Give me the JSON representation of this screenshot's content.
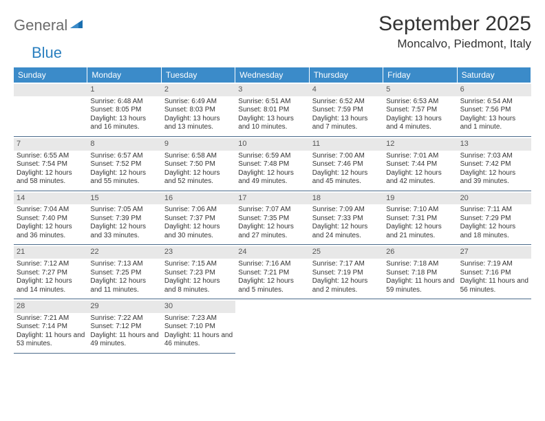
{
  "logo": {
    "part1": "General",
    "part2": "Blue"
  },
  "title": "September 2025",
  "location": "Moncalvo, Piedmont, Italy",
  "colors": {
    "header_bg": "#3b8bc9",
    "header_text": "#ffffff",
    "daynum_bg": "#e8e8e8",
    "rule": "#4a6a8a",
    "logo_gray": "#6b6b6b",
    "logo_blue": "#2a7fbf"
  },
  "weekdays": [
    "Sunday",
    "Monday",
    "Tuesday",
    "Wednesday",
    "Thursday",
    "Friday",
    "Saturday"
  ],
  "start_offset": 1,
  "days": [
    {
      "n": 1,
      "sr": "6:48 AM",
      "ss": "8:05 PM",
      "dl": "13 hours and 16 minutes."
    },
    {
      "n": 2,
      "sr": "6:49 AM",
      "ss": "8:03 PM",
      "dl": "13 hours and 13 minutes."
    },
    {
      "n": 3,
      "sr": "6:51 AM",
      "ss": "8:01 PM",
      "dl": "13 hours and 10 minutes."
    },
    {
      "n": 4,
      "sr": "6:52 AM",
      "ss": "7:59 PM",
      "dl": "13 hours and 7 minutes."
    },
    {
      "n": 5,
      "sr": "6:53 AM",
      "ss": "7:57 PM",
      "dl": "13 hours and 4 minutes."
    },
    {
      "n": 6,
      "sr": "6:54 AM",
      "ss": "7:56 PM",
      "dl": "13 hours and 1 minute."
    },
    {
      "n": 7,
      "sr": "6:55 AM",
      "ss": "7:54 PM",
      "dl": "12 hours and 58 minutes."
    },
    {
      "n": 8,
      "sr": "6:57 AM",
      "ss": "7:52 PM",
      "dl": "12 hours and 55 minutes."
    },
    {
      "n": 9,
      "sr": "6:58 AM",
      "ss": "7:50 PM",
      "dl": "12 hours and 52 minutes."
    },
    {
      "n": 10,
      "sr": "6:59 AM",
      "ss": "7:48 PM",
      "dl": "12 hours and 49 minutes."
    },
    {
      "n": 11,
      "sr": "7:00 AM",
      "ss": "7:46 PM",
      "dl": "12 hours and 45 minutes."
    },
    {
      "n": 12,
      "sr": "7:01 AM",
      "ss": "7:44 PM",
      "dl": "12 hours and 42 minutes."
    },
    {
      "n": 13,
      "sr": "7:03 AM",
      "ss": "7:42 PM",
      "dl": "12 hours and 39 minutes."
    },
    {
      "n": 14,
      "sr": "7:04 AM",
      "ss": "7:40 PM",
      "dl": "12 hours and 36 minutes."
    },
    {
      "n": 15,
      "sr": "7:05 AM",
      "ss": "7:39 PM",
      "dl": "12 hours and 33 minutes."
    },
    {
      "n": 16,
      "sr": "7:06 AM",
      "ss": "7:37 PM",
      "dl": "12 hours and 30 minutes."
    },
    {
      "n": 17,
      "sr": "7:07 AM",
      "ss": "7:35 PM",
      "dl": "12 hours and 27 minutes."
    },
    {
      "n": 18,
      "sr": "7:09 AM",
      "ss": "7:33 PM",
      "dl": "12 hours and 24 minutes."
    },
    {
      "n": 19,
      "sr": "7:10 AM",
      "ss": "7:31 PM",
      "dl": "12 hours and 21 minutes."
    },
    {
      "n": 20,
      "sr": "7:11 AM",
      "ss": "7:29 PM",
      "dl": "12 hours and 18 minutes."
    },
    {
      "n": 21,
      "sr": "7:12 AM",
      "ss": "7:27 PM",
      "dl": "12 hours and 14 minutes."
    },
    {
      "n": 22,
      "sr": "7:13 AM",
      "ss": "7:25 PM",
      "dl": "12 hours and 11 minutes."
    },
    {
      "n": 23,
      "sr": "7:15 AM",
      "ss": "7:23 PM",
      "dl": "12 hours and 8 minutes."
    },
    {
      "n": 24,
      "sr": "7:16 AM",
      "ss": "7:21 PM",
      "dl": "12 hours and 5 minutes."
    },
    {
      "n": 25,
      "sr": "7:17 AM",
      "ss": "7:19 PM",
      "dl": "12 hours and 2 minutes."
    },
    {
      "n": 26,
      "sr": "7:18 AM",
      "ss": "7:18 PM",
      "dl": "11 hours and 59 minutes."
    },
    {
      "n": 27,
      "sr": "7:19 AM",
      "ss": "7:16 PM",
      "dl": "11 hours and 56 minutes."
    },
    {
      "n": 28,
      "sr": "7:21 AM",
      "ss": "7:14 PM",
      "dl": "11 hours and 53 minutes."
    },
    {
      "n": 29,
      "sr": "7:22 AM",
      "ss": "7:12 PM",
      "dl": "11 hours and 49 minutes."
    },
    {
      "n": 30,
      "sr": "7:23 AM",
      "ss": "7:10 PM",
      "dl": "11 hours and 46 minutes."
    }
  ],
  "labels": {
    "sunrise": "Sunrise:",
    "sunset": "Sunset:",
    "daylight": "Daylight:"
  }
}
